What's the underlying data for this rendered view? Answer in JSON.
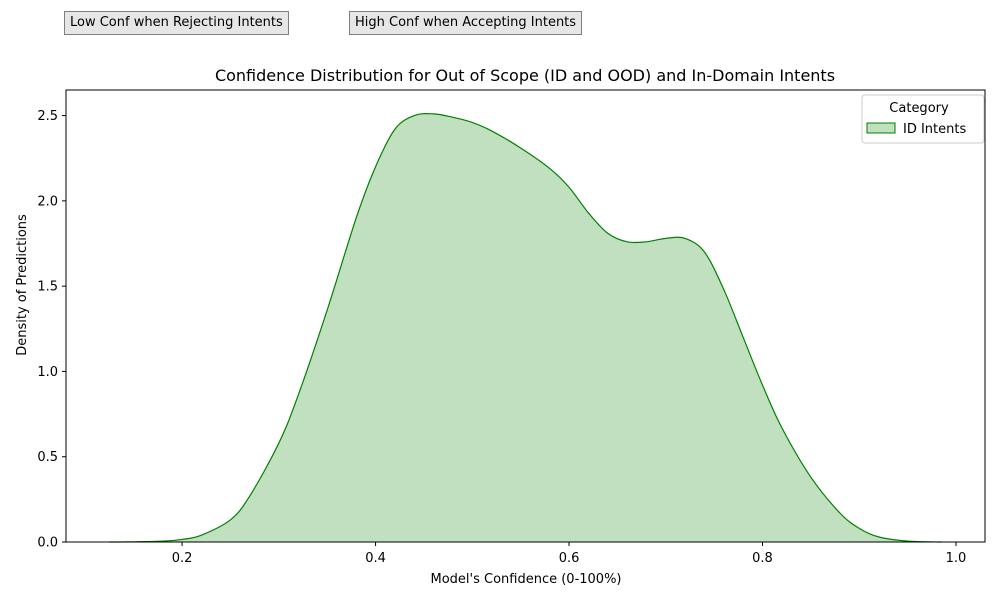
{
  "annotations": [
    "Low Conf when Rejecting Intents",
    "High Conf when Accepting Intents"
  ],
  "chart_data": {
    "type": "area",
    "title": "Confidence Distribution for Out of Scope (ID and OOD) and In-Domain Intents",
    "xlabel": "Model's Confidence (0-100%)",
    "ylabel": "Density of Predictions",
    "xlim": [
      0.08,
      1.03
    ],
    "ylim": [
      0,
      2.65
    ],
    "xticks": [
      0.2,
      0.4,
      0.6,
      0.8,
      1.0
    ],
    "xtick_labels": [
      "0.2",
      "0.4",
      "0.6",
      "0.8",
      "1.0"
    ],
    "yticks": [
      0.0,
      0.5,
      1.0,
      1.5,
      2.0,
      2.5
    ],
    "ytick_labels": [
      "0.0",
      "0.5",
      "1.0",
      "1.5",
      "2.0",
      "2.5"
    ],
    "grid": false,
    "legend": {
      "title": "Category",
      "placement": "top-right"
    },
    "series": [
      {
        "name": "ID Intents",
        "color": "#008000",
        "fill": "#c0e0c0",
        "x": [
          0.125,
          0.15,
          0.18,
          0.2,
          0.22,
          0.25,
          0.27,
          0.3,
          0.32,
          0.35,
          0.38,
          0.4,
          0.42,
          0.44,
          0.46,
          0.48,
          0.5,
          0.52,
          0.55,
          0.58,
          0.6,
          0.62,
          0.64,
          0.66,
          0.68,
          0.7,
          0.72,
          0.74,
          0.76,
          0.78,
          0.8,
          0.82,
          0.85,
          0.88,
          0.9,
          0.92,
          0.95,
          0.985
        ],
        "y": [
          0.0,
          0.001,
          0.005,
          0.015,
          0.04,
          0.13,
          0.27,
          0.58,
          0.86,
          1.36,
          1.9,
          2.2,
          2.42,
          2.5,
          2.51,
          2.49,
          2.46,
          2.41,
          2.31,
          2.19,
          2.08,
          1.93,
          1.81,
          1.76,
          1.76,
          1.78,
          1.78,
          1.7,
          1.48,
          1.2,
          0.92,
          0.67,
          0.38,
          0.17,
          0.08,
          0.03,
          0.005,
          0.0
        ]
      }
    ]
  }
}
